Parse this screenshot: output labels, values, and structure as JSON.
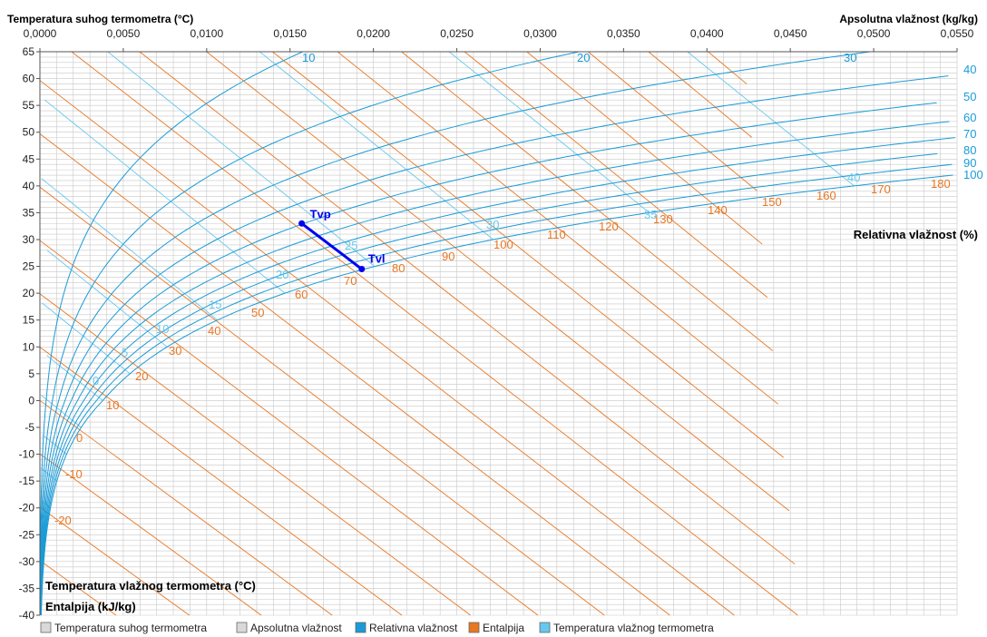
{
  "chart_data": {
    "type": "psychrometric",
    "titles": {
      "dry_bulb": "Temperatura suhog termometra (°C)",
      "abs_humidity": "Apsolutna vlažnost (kg/kg)",
      "rel_humidity": "Relativna vlažnost (%)",
      "wet_bulb": "Temperatura vlažnog termometra (°C)",
      "enthalpy": "Entalpija (kJ/kg)"
    },
    "ylim": [
      -40,
      65
    ],
    "xlim": [
      0,
      0.055
    ],
    "y_ticks": [
      "65",
      "60",
      "55",
      "50",
      "45",
      "40",
      "35",
      "30",
      "25",
      "20",
      "15",
      "10",
      "5",
      "0",
      "-5",
      "-10",
      "-15",
      "-20",
      "-25",
      "-30",
      "-35",
      "-40"
    ],
    "x_ticks": [
      "0,0000",
      "0,0050",
      "0,0100",
      "0,0150",
      "0,0200",
      "0,0250",
      "0,0300",
      "0,0350",
      "0,0400",
      "0,0450",
      "0,0500",
      "0,0550"
    ],
    "relative_humidity_labels": [
      "10",
      "20",
      "30",
      "40",
      "50",
      "60",
      "70",
      "80",
      "90",
      "100"
    ],
    "enthalpy_labels": [
      "-20",
      "-10",
      "0",
      "10",
      "20",
      "30",
      "40",
      "50",
      "60",
      "70",
      "80",
      "90",
      "100",
      "110",
      "120",
      "130",
      "140",
      "150",
      "160",
      "170",
      "180"
    ],
    "wet_bulb_labels": [
      "0",
      "5",
      "10",
      "15",
      "20",
      "25",
      "30",
      "35",
      "40"
    ],
    "process": {
      "start": {
        "name": "Tvp",
        "t": 33,
        "x": 0.0157
      },
      "end": {
        "name": "Tvl",
        "t": 24.5,
        "x": 0.0193
      }
    },
    "colors": {
      "rh": "#1a9bd7",
      "enthalpy": "#e87722",
      "wet_bulb": "#66c8ee",
      "process": "#0000ee",
      "grid": "#c8c8c8"
    },
    "legend": [
      "Temperatura suhog termometra",
      "Apsolutna vlažnost",
      "Relativna vlažnost",
      "Entalpija",
      "Temperatura vlažnog termometra"
    ],
    "legend_colors": [
      "#d9d9d9",
      "#d9d9d9",
      "#1a9bd7",
      "#e87722",
      "#66c8ee"
    ],
    "grid": true
  }
}
